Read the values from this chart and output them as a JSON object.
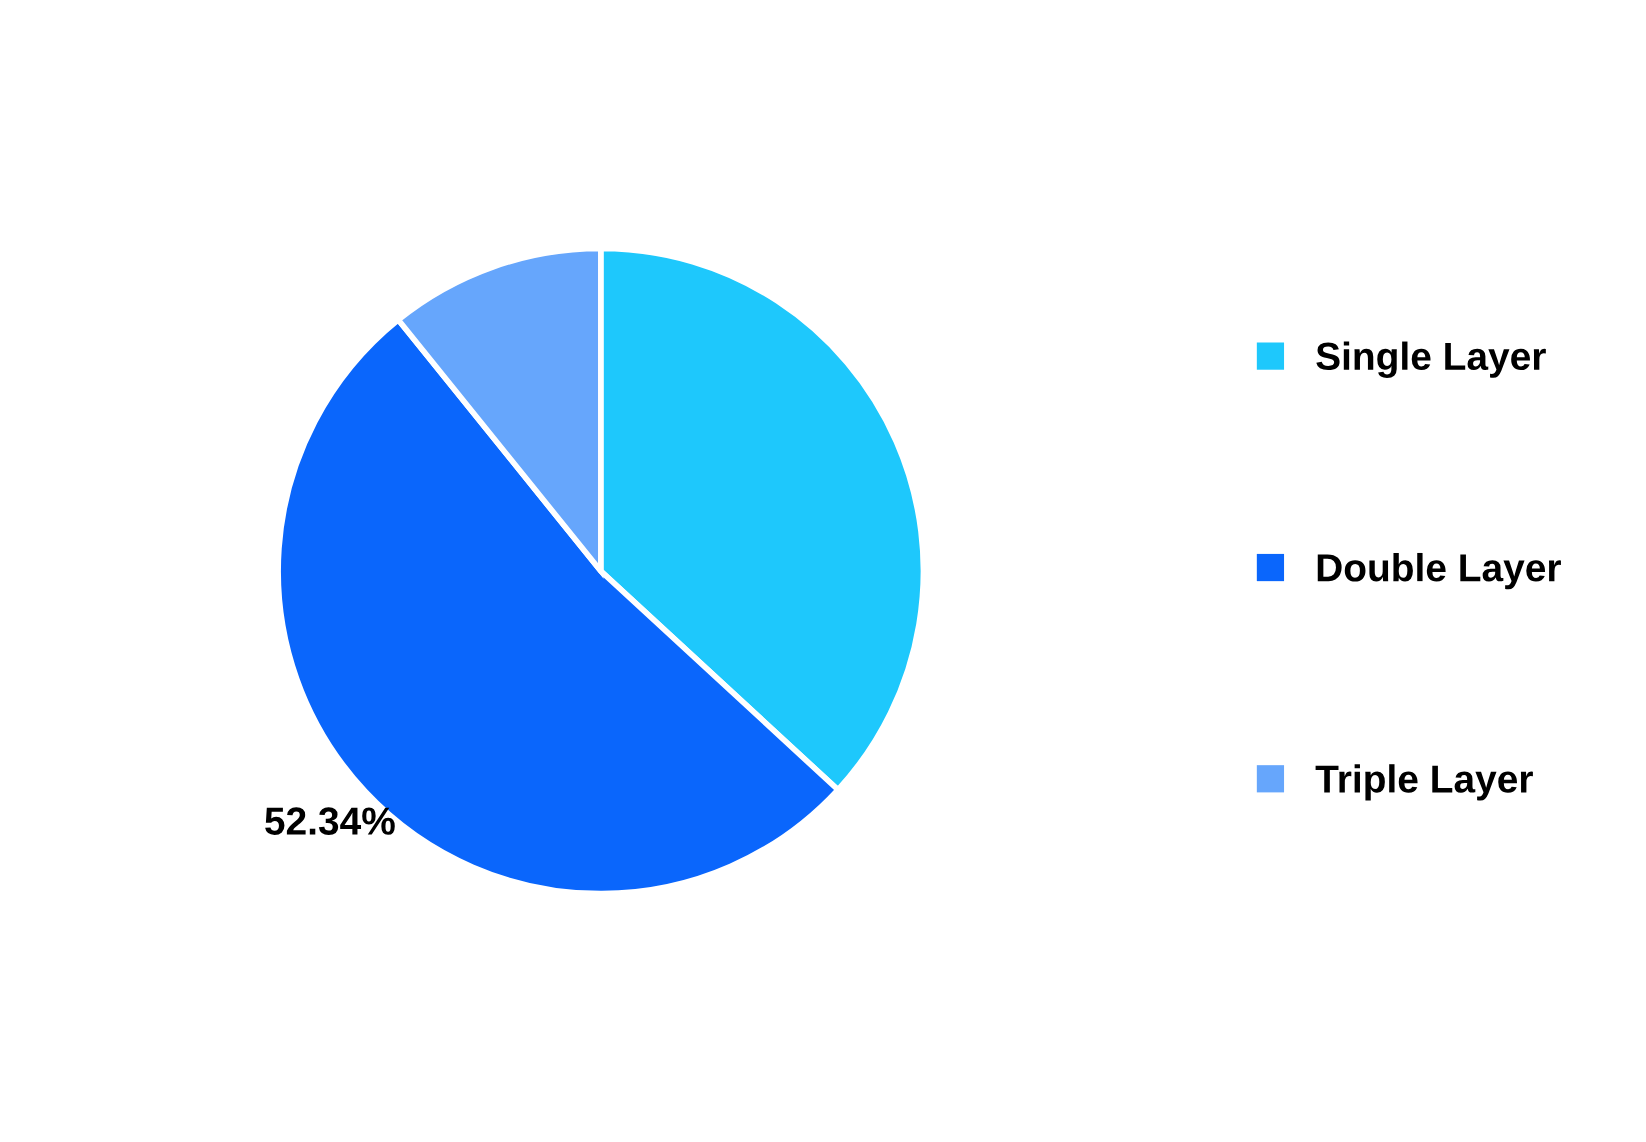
{
  "chart_data": {
    "type": "pie",
    "categories": [
      "Single Layer",
      "Double Layer",
      "Triple Layer"
    ],
    "values": [
      36.86,
      52.34,
      10.8
    ],
    "colors": [
      "#1ec8fc",
      "#0a66fc",
      "#66a6fc"
    ],
    "value_labels": [
      null,
      "52.34%",
      null
    ],
    "legend": "right"
  }
}
